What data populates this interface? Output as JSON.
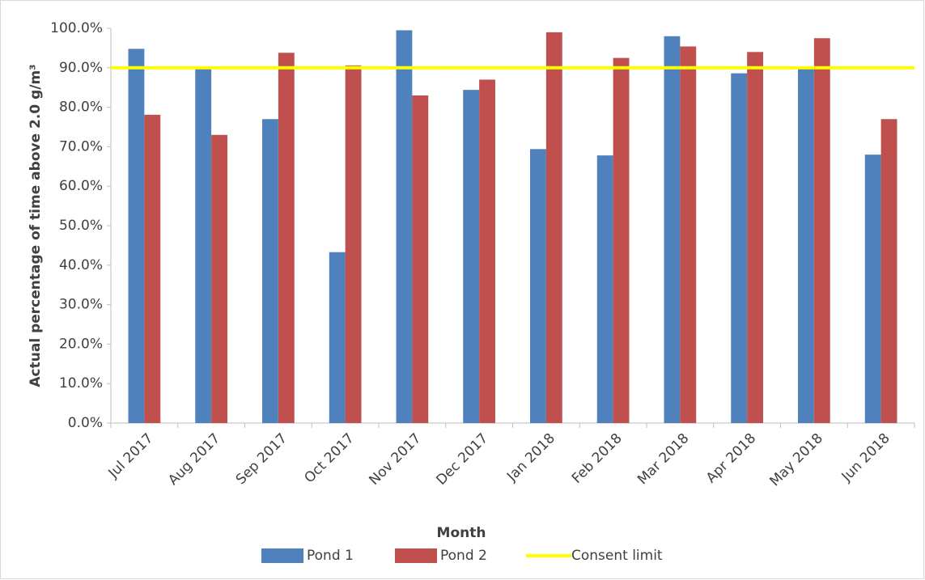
{
  "chart_data": {
    "type": "bar",
    "x_label": "Month",
    "y_label": "Actual percentage of time above 2.0 g/m³",
    "categories": [
      "Jul 2017",
      "Aug 2017",
      "Sep 2017",
      "Oct 2017",
      "Nov 2017",
      "Dec 2017",
      "Jan 2018",
      "Feb 2018",
      "Mar 2018",
      "Apr 2018",
      "May 2018",
      "Jun 2018"
    ],
    "series": [
      {
        "name": "Pond 1",
        "color": "#4f81bd",
        "values": [
          94.8,
          89.8,
          77.0,
          43.3,
          99.5,
          84.4,
          69.4,
          67.8,
          98.0,
          88.6,
          90.0,
          68.0
        ]
      },
      {
        "name": "Pond 2",
        "color": "#c0504d",
        "values": [
          78.1,
          73.0,
          93.8,
          90.6,
          83.0,
          87.0,
          99.0,
          92.5,
          95.4,
          94.0,
          97.5,
          77.0
        ]
      },
      {
        "name": "Consent limit",
        "type": "line",
        "color": "#ffff00",
        "values": [
          90,
          90,
          90,
          90,
          90,
          90,
          90,
          90,
          90,
          90,
          90,
          90
        ]
      }
    ],
    "ylim": [
      0,
      100
    ],
    "yticks": [
      {
        "value": 0,
        "label": "0.0%"
      },
      {
        "value": 10,
        "label": "10.0%"
      },
      {
        "value": 20,
        "label": "20.0%"
      },
      {
        "value": 30,
        "label": "30.0%"
      },
      {
        "value": 40,
        "label": "40.0%"
      },
      {
        "value": 50,
        "label": "50.0%"
      },
      {
        "value": 60,
        "label": "60.0%"
      },
      {
        "value": 70,
        "label": "70.0%"
      },
      {
        "value": 80,
        "label": "80.0%"
      },
      {
        "value": 90,
        "label": "90.0%"
      },
      {
        "value": 100,
        "label": "100.0%"
      }
    ],
    "grid": false,
    "legend": "bottom"
  }
}
